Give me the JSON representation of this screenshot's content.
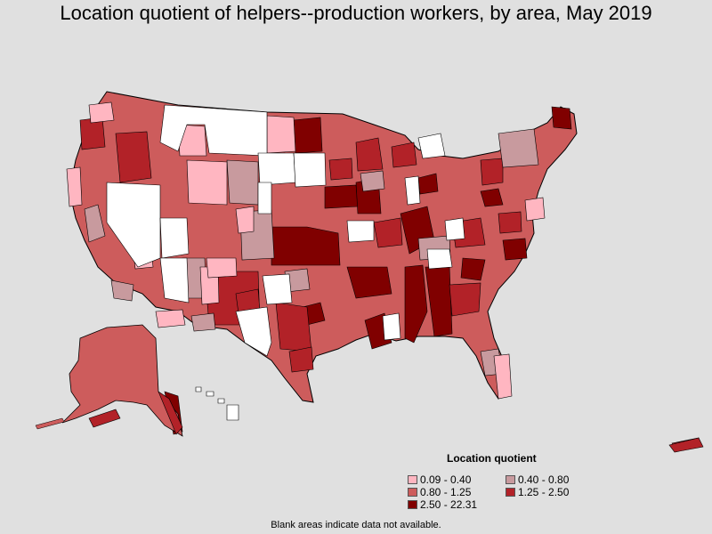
{
  "title": "Location quotient of helpers--production workers, by area, May 2019",
  "legend": {
    "title": "Location quotient",
    "items": [
      {
        "label": "0.09 - 0.40",
        "color": "#ffb6c1"
      },
      {
        "label": "0.40 - 0.80",
        "color": "#c89a9e"
      },
      {
        "label": "0.80 - 1.25",
        "color": "#cd5c5c"
      },
      {
        "label": "1.25 - 2.50",
        "color": "#b22228"
      },
      {
        "label": "2.50 - 22.31",
        "color": "#800000"
      }
    ]
  },
  "footnote": "Blank areas indicate data not available.",
  "colors": {
    "background": "#e0e0e0",
    "no_data": "#ffffff",
    "border": "#000000"
  }
}
